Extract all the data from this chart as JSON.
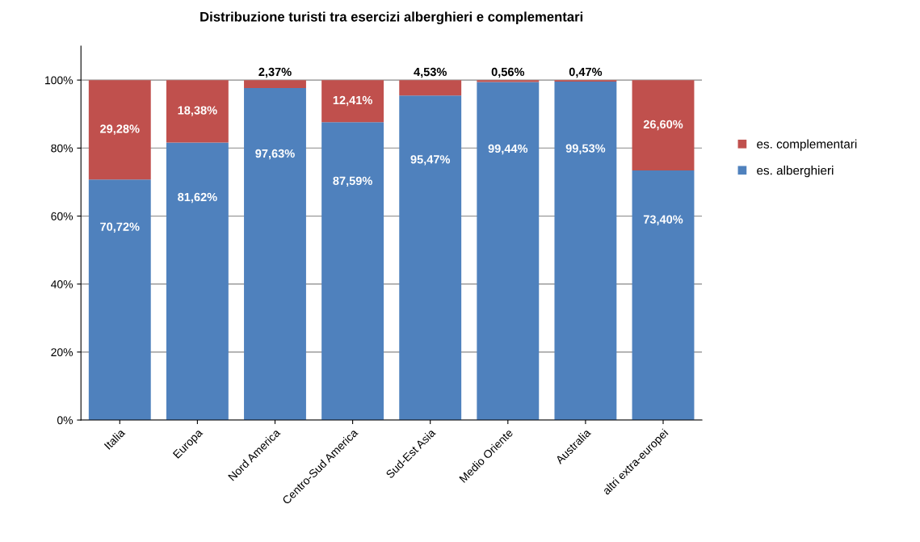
{
  "chart_data": {
    "type": "bar",
    "title": "Distribuzione turisti tra esercizi alberghieri e complementari",
    "categories": [
      "Italia",
      "Europa",
      "Nord America",
      "Centro-Sud America",
      "Sud-Est Asia",
      "Medio Oriente",
      "Australia",
      "altri extra-europei"
    ],
    "stacked": true,
    "series": [
      {
        "name": "es. alberghieri",
        "color": "#4f81bd",
        "values": [
          70.72,
          81.62,
          97.63,
          87.59,
          95.47,
          99.44,
          99.53,
          73.4
        ],
        "value_labels": [
          "70,72%",
          "81,62%",
          "97,63%",
          "87,59%",
          "95,47%",
          "99,44%",
          "99,53%",
          "73,40%"
        ]
      },
      {
        "name": "es. complementari",
        "color": "#c0504d",
        "values": [
          29.28,
          18.38,
          2.37,
          12.41,
          4.53,
          0.56,
          0.47,
          26.6
        ],
        "value_labels": [
          "29,28%",
          "18,38%",
          "2,37%",
          "12,41%",
          "4,53%",
          "0,56%",
          "0,47%",
          "26,60%"
        ]
      }
    ],
    "ylim": [
      0,
      110
    ],
    "yticks": [
      {
        "value": 0,
        "label": "0%"
      },
      {
        "value": 20,
        "label": "20%"
      },
      {
        "value": 40,
        "label": "40%"
      },
      {
        "value": 60,
        "label": "60%"
      },
      {
        "value": 80,
        "label": "80%"
      },
      {
        "value": 100,
        "label": "100%"
      }
    ],
    "grid": "y",
    "legend": "right"
  }
}
